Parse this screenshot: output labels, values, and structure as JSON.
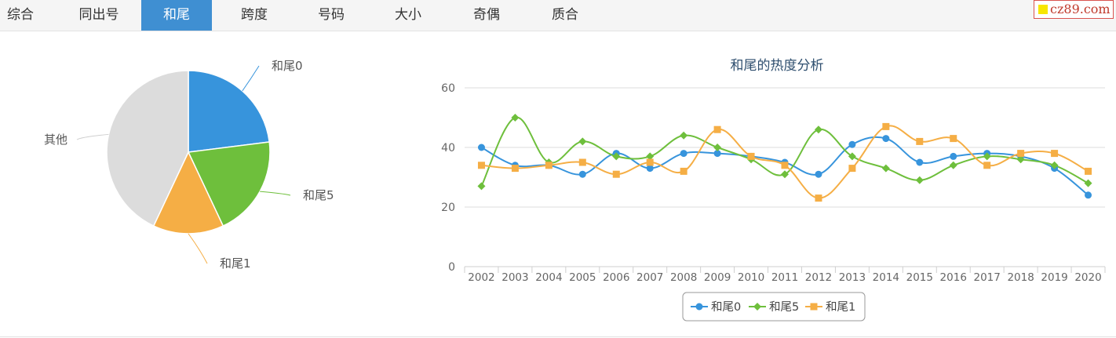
{
  "tabs": [
    {
      "label": "综合",
      "active": false
    },
    {
      "label": "同出号",
      "active": false
    },
    {
      "label": "和尾",
      "active": true
    },
    {
      "label": "跨度",
      "active": false
    },
    {
      "label": "号码",
      "active": false
    },
    {
      "label": "大小",
      "active": false
    },
    {
      "label": "奇偶",
      "active": false
    },
    {
      "label": "质合",
      "active": false
    }
  ],
  "logo": {
    "text": "cz89.com"
  },
  "chart_data": [
    {
      "type": "pie",
      "slices": [
        {
          "label": "和尾0",
          "value": 23,
          "color": "#3794dc"
        },
        {
          "label": "和尾5",
          "value": 20,
          "color": "#6ebf3c"
        },
        {
          "label": "和尾1",
          "value": 14,
          "color": "#f5ae45"
        },
        {
          "label": "其他",
          "value": 43,
          "color": "#dcdcdc"
        }
      ]
    },
    {
      "type": "line",
      "title": "和尾的热度分析",
      "x": [
        "2002",
        "2003",
        "2004",
        "2005",
        "2006",
        "2007",
        "2008",
        "2009",
        "2010",
        "2011",
        "2012",
        "2013",
        "2014",
        "2015",
        "2016",
        "2017",
        "2018",
        "2019",
        "2020"
      ],
      "ylim": [
        0,
        60
      ],
      "yticks": [
        "0",
        "20",
        "40",
        "60"
      ],
      "grid": true,
      "legend": "bottom-center",
      "series": [
        {
          "name": "和尾0",
          "color": "#3794dc",
          "marker": "circle",
          "values": [
            40,
            34,
            34,
            31,
            38,
            33,
            38,
            38,
            37,
            35,
            31,
            41,
            43,
            35,
            37,
            38,
            37,
            33,
            24
          ]
        },
        {
          "name": "和尾5",
          "color": "#6ebf3c",
          "marker": "diamond",
          "values": [
            27,
            50,
            35,
            42,
            37,
            37,
            44,
            40,
            36,
            31,
            46,
            37,
            33,
            29,
            34,
            37,
            36,
            34,
            28
          ]
        },
        {
          "name": "和尾1",
          "color": "#f5ae45",
          "marker": "square",
          "values": [
            34,
            33,
            34,
            35,
            31,
            35,
            32,
            46,
            37,
            34,
            23,
            33,
            47,
            42,
            43,
            34,
            38,
            38,
            32
          ]
        }
      ]
    }
  ]
}
